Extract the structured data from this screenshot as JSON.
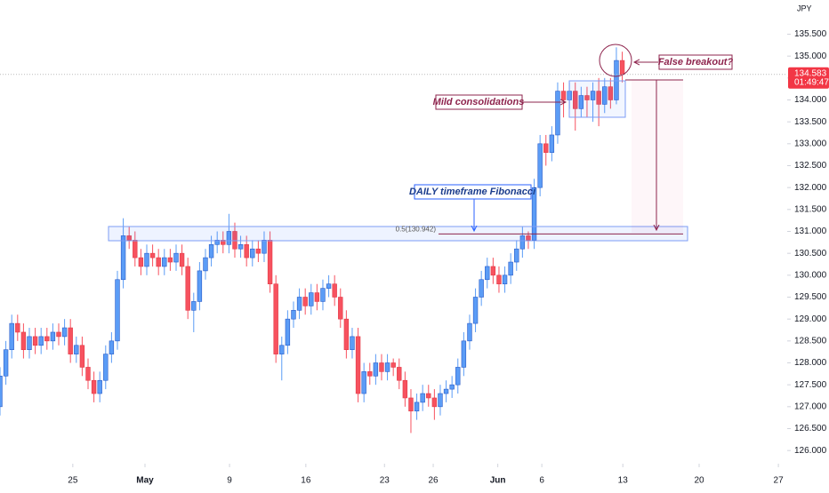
{
  "chart_data": {
    "type": "candlestick",
    "currency": "JPY",
    "xlim": [
      0,
      134.1
    ],
    "ylim": [
      125.74,
      136.28
    ],
    "grid": false,
    "up_color": "#5b9cf6",
    "down_color": "#f7525f",
    "xticks": [
      {
        "value": 12.4,
        "label": "25"
      },
      {
        "value": 24.7,
        "label": "May"
      },
      {
        "value": 39.1,
        "label": "9"
      },
      {
        "value": 52.1,
        "label": "16"
      },
      {
        "value": 65.5,
        "label": "23"
      },
      {
        "value": 73.8,
        "label": "26"
      },
      {
        "value": 84.8,
        "label": "Jun"
      },
      {
        "value": 92.3,
        "label": "6"
      },
      {
        "value": 106.1,
        "label": "13"
      },
      {
        "value": 119.1,
        "label": "20"
      },
      {
        "value": 132.6,
        "label": "27"
      }
    ],
    "yticks": [
      {
        "value": 126,
        "label": "126.000"
      },
      {
        "value": 126.5,
        "label": "126.500"
      },
      {
        "value": 127,
        "label": "127.000"
      },
      {
        "value": 127.5,
        "label": "127.500"
      },
      {
        "value": 128,
        "label": "128.000"
      },
      {
        "value": 128.5,
        "label": "128.500"
      },
      {
        "value": 129,
        "label": "129.000"
      },
      {
        "value": 129.5,
        "label": "129.500"
      },
      {
        "value": 130,
        "label": "130.000"
      },
      {
        "value": 130.5,
        "label": "130.500"
      },
      {
        "value": 131,
        "label": "131.000"
      },
      {
        "value": 131.5,
        "label": "131.500"
      },
      {
        "value": 132,
        "label": "132.000"
      },
      {
        "value": 132.5,
        "label": "132.500"
      },
      {
        "value": 133,
        "label": "133.000"
      },
      {
        "value": 133.5,
        "label": "133.500"
      },
      {
        "value": 134,
        "label": "134.000"
      },
      {
        "value": 134.5,
        "label": "134.500"
      },
      {
        "value": 135,
        "label": "135.000"
      },
      {
        "value": 135.5,
        "label": "135.500"
      }
    ],
    "open": [
      127.0,
      127.7,
      128.3,
      128.9,
      128.7,
      128.3,
      128.6,
      128.4,
      128.6,
      128.5,
      128.7,
      128.6,
      128.8,
      128.2,
      128.4,
      127.9,
      127.6,
      127.3,
      127.6,
      128.2,
      128.5,
      129.9,
      130.9,
      130.8,
      130.4,
      130.2,
      130.5,
      130.4,
      130.2,
      130.4,
      130.3,
      130.5,
      130.2,
      129.2,
      129.4,
      130.1,
      130.4,
      130.7,
      130.8,
      130.7,
      131.0,
      130.6,
      130.7,
      130.4,
      130.6,
      130.5,
      130.8,
      129.8,
      128.2,
      128.4,
      129.0,
      129.2,
      129.5,
      129.3,
      129.6,
      129.4,
      129.7,
      129.8,
      129.5,
      129.0,
      128.3,
      128.6,
      127.3,
      127.8,
      127.7,
      128.0,
      127.8,
      128.0,
      127.9,
      127.6,
      127.2,
      126.9,
      127.1,
      127.3,
      127.2,
      127.0,
      127.3,
      127.4,
      127.5,
      127.9,
      128.5,
      128.9,
      129.5,
      129.9,
      130.2,
      130.0,
      129.8,
      130.0,
      130.3,
      130.6,
      130.9,
      130.8,
      132.0,
      133.0,
      132.8,
      133.2,
      134.2,
      134.0,
      134.2,
      133.8,
      134.1,
      134.0,
      134.2,
      133.9,
      134.3,
      134.0,
      134.9
    ],
    "high": [
      127.9,
      128.5,
      129.1,
      129.1,
      128.9,
      128.8,
      128.8,
      128.8,
      128.8,
      128.9,
      128.9,
      129.0,
      129.0,
      128.6,
      128.6,
      128.1,
      127.8,
      127.8,
      128.4,
      128.7,
      130.1,
      131.3,
      131.1,
      131.0,
      130.6,
      130.7,
      130.7,
      130.6,
      130.6,
      130.6,
      130.7,
      130.7,
      130.4,
      129.6,
      130.3,
      130.6,
      130.9,
      131.0,
      131.0,
      131.4,
      131.2,
      130.9,
      130.9,
      130.8,
      130.8,
      131.0,
      131.0,
      130.0,
      128.6,
      129.2,
      129.4,
      129.7,
      129.7,
      129.8,
      129.8,
      129.9,
      130.0,
      130.0,
      129.7,
      129.2,
      128.8,
      128.8,
      128.0,
      128.0,
      128.2,
      128.2,
      128.2,
      128.1,
      128.1,
      127.8,
      127.4,
      127.3,
      127.5,
      127.5,
      127.4,
      127.5,
      127.6,
      127.7,
      128.1,
      128.7,
      129.1,
      129.7,
      130.1,
      130.4,
      130.4,
      130.2,
      130.2,
      130.5,
      130.8,
      131.1,
      131.0,
      132.2,
      133.2,
      133.2,
      133.4,
      134.4,
      134.4,
      134.4,
      134.4,
      134.3,
      134.3,
      134.4,
      134.5,
      134.5,
      134.5,
      135.2,
      135.1
    ],
    "low": [
      126.8,
      127.5,
      128.1,
      128.5,
      128.1,
      128.1,
      128.2,
      128.2,
      128.3,
      128.3,
      128.4,
      128.4,
      128.0,
      128.0,
      127.7,
      127.4,
      127.1,
      127.1,
      127.4,
      128.0,
      128.3,
      129.7,
      130.6,
      130.2,
      130.0,
      130.0,
      130.2,
      130.0,
      130.0,
      130.1,
      130.1,
      130.0,
      129.0,
      128.7,
      129.2,
      129.9,
      130.2,
      130.5,
      130.5,
      130.5,
      130.4,
      130.4,
      130.2,
      130.2,
      130.3,
      130.3,
      129.6,
      128.0,
      127.6,
      128.2,
      128.8,
      129.0,
      129.1,
      129.1,
      129.2,
      129.2,
      129.5,
      129.3,
      128.8,
      128.1,
      128.1,
      127.1,
      127.1,
      127.5,
      127.5,
      127.6,
      127.6,
      127.7,
      127.4,
      127.0,
      126.4,
      126.7,
      126.9,
      127.0,
      126.7,
      126.8,
      127.1,
      127.2,
      127.3,
      127.7,
      128.3,
      128.7,
      129.3,
      129.7,
      129.8,
      129.6,
      129.6,
      129.8,
      130.1,
      130.4,
      130.6,
      130.6,
      131.8,
      132.5,
      132.6,
      133.0,
      133.6,
      133.8,
      133.3,
      133.6,
      133.6,
      133.5,
      133.4,
      133.7,
      133.8,
      133.9,
      134.4
    ],
    "close": [
      127.7,
      128.3,
      128.9,
      128.7,
      128.3,
      128.6,
      128.4,
      128.6,
      128.5,
      128.7,
      128.6,
      128.8,
      128.2,
      128.4,
      127.9,
      127.6,
      127.3,
      127.6,
      128.2,
      128.5,
      129.9,
      130.9,
      130.8,
      130.4,
      130.2,
      130.5,
      130.4,
      130.2,
      130.4,
      130.3,
      130.5,
      130.2,
      129.2,
      129.4,
      130.1,
      130.4,
      130.7,
      130.8,
      130.7,
      131.0,
      130.6,
      130.7,
      130.4,
      130.6,
      130.5,
      130.8,
      129.8,
      128.2,
      128.4,
      129.0,
      129.2,
      129.5,
      129.3,
      129.6,
      129.4,
      129.7,
      129.8,
      129.5,
      129.0,
      128.3,
      128.6,
      127.3,
      127.8,
      127.7,
      128.0,
      127.8,
      128.0,
      127.9,
      127.6,
      127.2,
      126.9,
      127.1,
      127.3,
      127.2,
      127.0,
      127.3,
      127.4,
      127.5,
      127.9,
      128.5,
      128.9,
      129.5,
      129.9,
      130.2,
      130.0,
      129.8,
      130.0,
      130.3,
      130.6,
      130.9,
      130.8,
      132.0,
      133.0,
      132.8,
      133.2,
      134.2,
      134.0,
      134.2,
      133.8,
      134.1,
      134.0,
      134.2,
      133.9,
      134.3,
      134.0,
      134.9,
      134.583
    ],
    "last_price": 134.583,
    "countdown": "01:49:47",
    "fib_level": {
      "value": 130.942,
      "label": "0.5(130.942)"
    },
    "annotations": {
      "false_breakout": "False breakout?",
      "mild_consolidations": "Mild consolidations",
      "fibonacci": "DAILY timeframe Fibonacci"
    }
  }
}
